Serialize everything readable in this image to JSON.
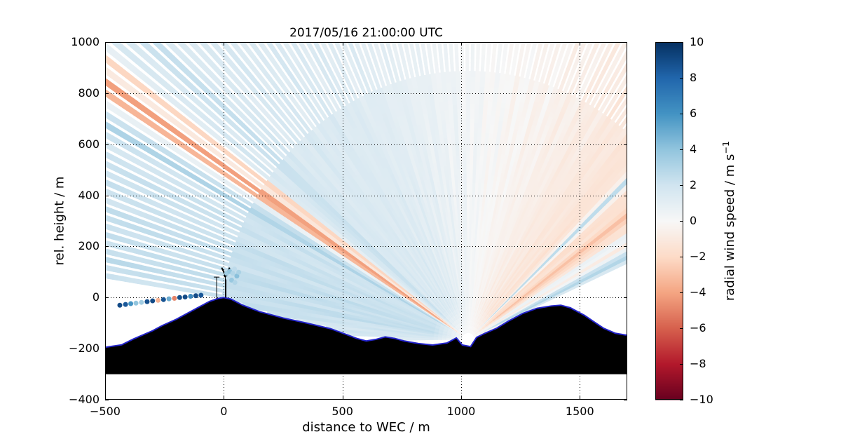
{
  "figure": {
    "title": "2017/05/16 21:00:00 UTC"
  },
  "axes": {
    "xlabel": "distance to WEC / m",
    "ylabel": "rel. height / m",
    "xlim": [
      -500,
      1700
    ],
    "ylim": [
      -400,
      1000
    ],
    "xticks": [
      -500,
      0,
      500,
      1000,
      1500
    ],
    "xtick_labels": [
      "−500",
      "0",
      "500",
      "1000",
      "1500"
    ],
    "yticks": [
      -400,
      -200,
      0,
      200,
      400,
      600,
      800,
      1000
    ],
    "ytick_labels": [
      "−400",
      "−200",
      "0",
      "200",
      "400",
      "600",
      "800",
      "1000"
    ],
    "grid": "dotted"
  },
  "colorbar": {
    "label": "radial wind speed / m s",
    "label_exponent": "−1",
    "vmin": -10,
    "vmax": 10,
    "ticks": [
      10,
      8,
      6,
      4,
      2,
      0,
      -2,
      -4,
      -6,
      -8,
      -10
    ],
    "tick_labels": [
      "10",
      "8",
      "6",
      "4",
      "2",
      "0",
      "−2",
      "−4",
      "−6",
      "−8",
      "−10"
    ],
    "colormap": "RdBu",
    "stops": [
      [
        0.0,
        "#67001f"
      ],
      [
        0.1,
        "#b2182b"
      ],
      [
        0.2,
        "#d6604d"
      ],
      [
        0.3,
        "#f4a582"
      ],
      [
        0.4,
        "#fddbc7"
      ],
      [
        0.5,
        "#f7f7f7"
      ],
      [
        0.6,
        "#d1e5f0"
      ],
      [
        0.7,
        "#92c5de"
      ],
      [
        0.8,
        "#4393c3"
      ],
      [
        0.9,
        "#2166ac"
      ],
      [
        1.0,
        "#053061"
      ]
    ]
  },
  "chart_data": {
    "type": "heatmap",
    "title": "2017/05/16 21:00:00 UTC",
    "xlabel": "distance to WEC / m",
    "ylabel": "rel. height / m",
    "colorbar_label": "radial wind speed / m s−1",
    "xlim": [
      -500,
      1700
    ],
    "ylim": [
      -400,
      1000
    ],
    "value_range": [
      -10,
      10
    ],
    "scan": {
      "origin": {
        "x": 1030,
        "y": -165
      },
      "theta_start_deg": 12,
      "theta_end_deg": 181,
      "theta_step_deg": 1.15,
      "gap_radius_m": 1060,
      "base_profile": [
        [
          12,
          -1.2
        ],
        [
          20,
          -1.6
        ],
        [
          30,
          -1.4
        ],
        [
          40,
          -1.6
        ],
        [
          50,
          -1.2
        ],
        [
          60,
          -0.8
        ],
        [
          70,
          -0.4
        ],
        [
          80,
          -0.1
        ],
        [
          90,
          0.3
        ],
        [
          100,
          0.7
        ],
        [
          110,
          1.1
        ],
        [
          120,
          1.4
        ],
        [
          130,
          1.5
        ],
        [
          140,
          1.6
        ],
        [
          152,
          2.0
        ],
        [
          162,
          2.3
        ],
        [
          170,
          2.4
        ],
        [
          176,
          1.8
        ],
        [
          181,
          1.4
        ]
      ],
      "streaks": [
        {
          "angle_deg": 147.0,
          "width_deg": 1.0,
          "speed": -4.8
        },
        {
          "angle_deg": 144.5,
          "width_deg": 0.7,
          "speed": -2.4
        },
        {
          "angle_deg": 150.8,
          "width_deg": 0.5,
          "speed": 3.4
        },
        {
          "angle_deg": 139.0,
          "width_deg": 0.6,
          "speed": 2.6
        },
        {
          "angle_deg": 43.0,
          "width_deg": 0.7,
          "speed": 2.6
        },
        {
          "angle_deg": 36.0,
          "width_deg": 0.9,
          "speed": -3.0
        },
        {
          "angle_deg": 31.0,
          "width_deg": 0.6,
          "speed": 1.6
        },
        {
          "angle_deg": 26.0,
          "width_deg": 1.6,
          "speed": 3.0
        },
        {
          "angle_deg": 20.0,
          "width_deg": 0.5,
          "speed": -2.6
        }
      ]
    },
    "terrain": {
      "base_height": -300,
      "fill": "#000000",
      "edge_color": "#2424cc",
      "profile": [
        [
          -500,
          -195
        ],
        [
          -430,
          -185
        ],
        [
          -380,
          -162
        ],
        [
          -330,
          -142
        ],
        [
          -300,
          -130
        ],
        [
          -260,
          -110
        ],
        [
          -200,
          -85
        ],
        [
          -150,
          -60
        ],
        [
          -100,
          -35
        ],
        [
          -60,
          -15
        ],
        [
          -25,
          -4
        ],
        [
          0,
          0
        ],
        [
          30,
          -6
        ],
        [
          80,
          -30
        ],
        [
          150,
          -55
        ],
        [
          250,
          -80
        ],
        [
          350,
          -100
        ],
        [
          450,
          -122
        ],
        [
          520,
          -146
        ],
        [
          560,
          -160
        ],
        [
          600,
          -170
        ],
        [
          640,
          -164
        ],
        [
          680,
          -154
        ],
        [
          720,
          -160
        ],
        [
          760,
          -170
        ],
        [
          820,
          -180
        ],
        [
          880,
          -186
        ],
        [
          940,
          -178
        ],
        [
          980,
          -158
        ],
        [
          1005,
          -186
        ],
        [
          1040,
          -192
        ],
        [
          1065,
          -156
        ],
        [
          1100,
          -140
        ],
        [
          1150,
          -120
        ],
        [
          1200,
          -92
        ],
        [
          1260,
          -62
        ],
        [
          1320,
          -42
        ],
        [
          1380,
          -33
        ],
        [
          1420,
          -30
        ],
        [
          1460,
          -40
        ],
        [
          1520,
          -70
        ],
        [
          1560,
          -95
        ],
        [
          1600,
          -120
        ],
        [
          1650,
          -140
        ],
        [
          1700,
          -148
        ]
      ]
    },
    "turbine": {
      "x": 8,
      "base_height": 0,
      "hub_height": 85,
      "rotor_radius": 36,
      "blade_angles_deg": [
        62,
        118,
        270
      ],
      "color": "#000000"
    },
    "met_mast": {
      "x": -30,
      "base_height": -5,
      "top_height": 80
    },
    "point_returns": [
      {
        "x": -438,
        "y": -30,
        "speed": 9.0
      },
      {
        "x": -414,
        "y": -27,
        "speed": 8.5
      },
      {
        "x": -392,
        "y": -24,
        "speed": 6.0
      },
      {
        "x": -370,
        "y": -22,
        "speed": 4.0
      },
      {
        "x": -347,
        "y": -19,
        "speed": 3.5
      },
      {
        "x": -323,
        "y": -16,
        "speed": 8.8
      },
      {
        "x": -300,
        "y": -13,
        "speed": 9.0
      },
      {
        "x": -277,
        "y": -11,
        "speed": -3.5
      },
      {
        "x": -254,
        "y": -8,
        "speed": 8.7
      },
      {
        "x": -231,
        "y": -5,
        "speed": 5.0
      },
      {
        "x": -208,
        "y": -3,
        "speed": -5.0
      },
      {
        "x": -186,
        "y": 0,
        "speed": 8.9
      },
      {
        "x": -163,
        "y": 2,
        "speed": 9.0
      },
      {
        "x": -140,
        "y": 5,
        "speed": 6.5
      },
      {
        "x": -118,
        "y": 7,
        "speed": 9.0
      },
      {
        "x": -96,
        "y": 9,
        "speed": 8.5
      },
      {
        "x": 12,
        "y": 95,
        "speed": 3.5
      },
      {
        "x": 25,
        "y": 102,
        "speed": 4.0
      },
      {
        "x": 38,
        "y": 95,
        "speed": 3.0
      },
      {
        "x": 18,
        "y": 76,
        "speed": 2.5
      },
      {
        "x": 33,
        "y": 68,
        "speed": 3.8
      },
      {
        "x": 47,
        "y": 59,
        "speed": 3.0
      },
      {
        "x": 55,
        "y": 84,
        "speed": 4.2
      },
      {
        "x": 63,
        "y": 99,
        "speed": 3.2
      },
      {
        "x": 45,
        "y": 112,
        "speed": 2.6
      }
    ]
  }
}
